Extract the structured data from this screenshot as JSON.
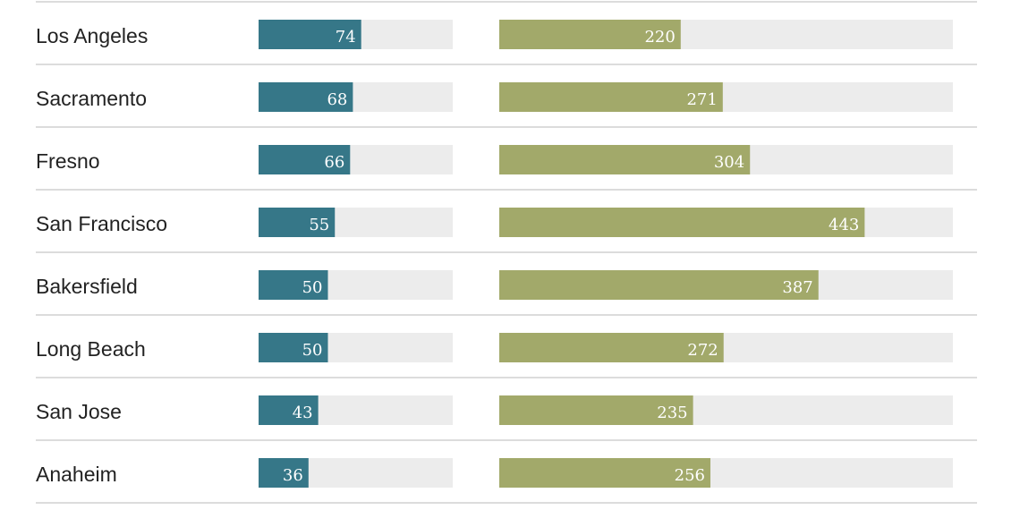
{
  "chart_data": {
    "type": "bar",
    "categories": [
      "Los Angeles",
      "Sacramento",
      "Fresno",
      "San Francisco",
      "Bakersfield",
      "Long Beach",
      "San Jose",
      "Anaheim"
    ],
    "series": [
      {
        "values": [
          74,
          68,
          66,
          55,
          50,
          50,
          43,
          36
        ],
        "color": "#367788",
        "track_color": "#ececec",
        "max": 140
      },
      {
        "values": [
          220,
          271,
          304,
          443,
          387,
          272,
          235,
          256
        ],
        "color": "#a2a96a",
        "track_color": "#ececec",
        "max": 550
      }
    ],
    "grid": true
  }
}
